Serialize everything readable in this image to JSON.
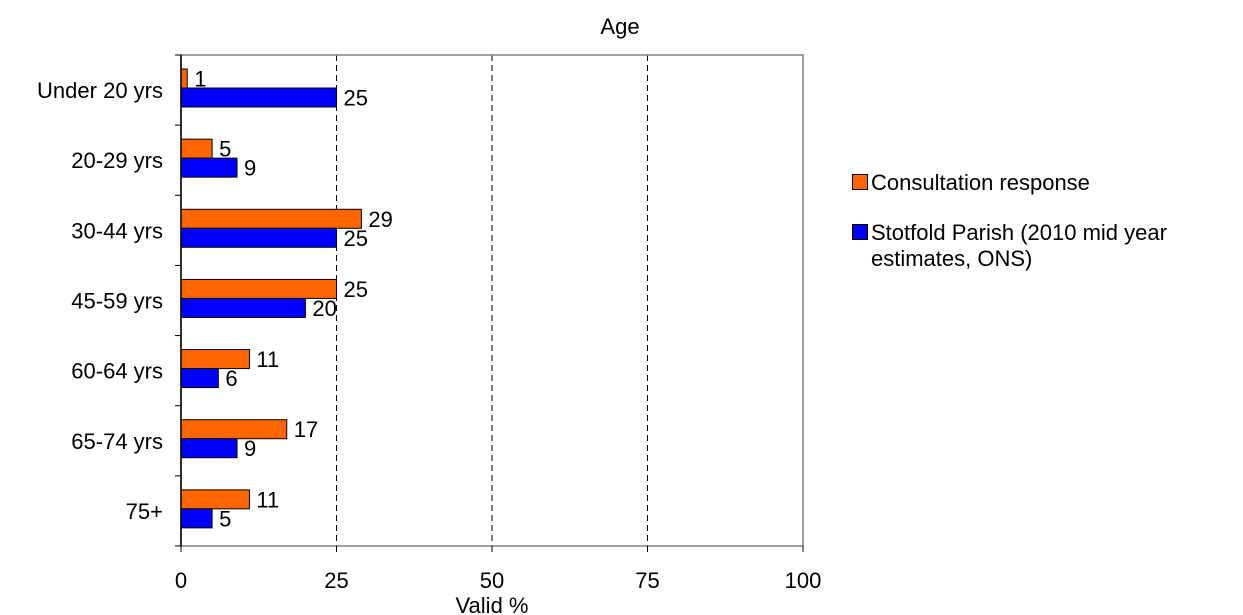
{
  "chart_data": {
    "type": "bar",
    "orientation": "horizontal",
    "title": "Age",
    "xlabel": "Valid %",
    "ylabel": "",
    "xlim": [
      0,
      100
    ],
    "xticks": [
      "0",
      "25",
      "50",
      "75",
      "100"
    ],
    "categories": [
      "Under 20 yrs",
      "20-29 yrs",
      "30-44 yrs",
      "45-59 yrs",
      "60-64 yrs",
      "65-74 yrs",
      "75+"
    ],
    "series": [
      {
        "name": "Consultation response",
        "color": "#ff6600",
        "values": [
          1,
          5,
          29,
          25,
          11,
          17,
          11
        ],
        "labels": [
          "1",
          "5",
          "29",
          "25",
          "11",
          "17",
          "11"
        ]
      },
      {
        "name": "Stotfold Parish (2010 mid year estimates, ONS)",
        "color": "#0000ff",
        "values": [
          25,
          9,
          25,
          20,
          6,
          9,
          5
        ],
        "labels": [
          "25",
          "9",
          "25",
          "20",
          "6",
          "9",
          "5"
        ]
      }
    ],
    "grid": "vertical dashed",
    "legend_position": "right"
  }
}
